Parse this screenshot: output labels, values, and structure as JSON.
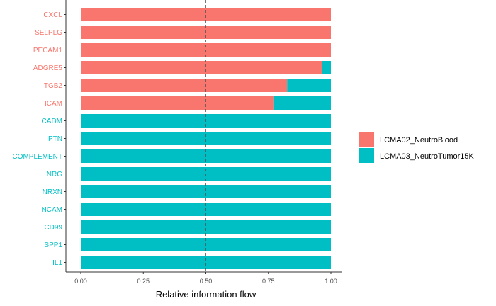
{
  "chart_data": {
    "type": "bar",
    "orientation": "horizontal",
    "stacked": true,
    "categories": [
      "CXCL",
      "SELPLG",
      "PECAM1",
      "ADGRE5",
      "ITGB2",
      "ICAM",
      "CADM",
      "PTN",
      "COMPLEMENT",
      "NRG",
      "NRXN",
      "NCAM",
      "CD99",
      "SPP1",
      "IL1"
    ],
    "label_colors": [
      "#F8766D",
      "#F8766D",
      "#F8766D",
      "#F8766D",
      "#F8766D",
      "#F8766D",
      "#00BFC4",
      "#00BFC4",
      "#00BFC4",
      "#00BFC4",
      "#00BFC4",
      "#00BFC4",
      "#00BFC4",
      "#00BFC4",
      "#00BFC4"
    ],
    "series": [
      {
        "name": "LCMA02_NeutroBlood",
        "color": "#F8766D",
        "values": [
          1.0,
          1.0,
          1.0,
          0.965,
          0.825,
          0.77,
          0,
          0,
          0,
          0,
          0,
          0,
          0,
          0,
          0
        ]
      },
      {
        "name": "LCMA03_NeutroTumor15K",
        "color": "#00BFC4",
        "values": [
          0,
          0,
          0,
          0.035,
          0.175,
          0.23,
          1.0,
          1.0,
          1.0,
          1.0,
          1.0,
          1.0,
          1.0,
          1.0,
          1.0
        ]
      }
    ],
    "xlabel": "Relative information flow",
    "ylabel": "",
    "xlim": [
      0,
      1
    ],
    "xticks": [
      0,
      0.25,
      0.5,
      0.75,
      1.0
    ],
    "xtick_labels": [
      "0.00",
      "0.25",
      "0.50",
      "0.75",
      "1.00"
    ],
    "reference_line": 0.5,
    "grid": false,
    "legend_position": "right"
  }
}
